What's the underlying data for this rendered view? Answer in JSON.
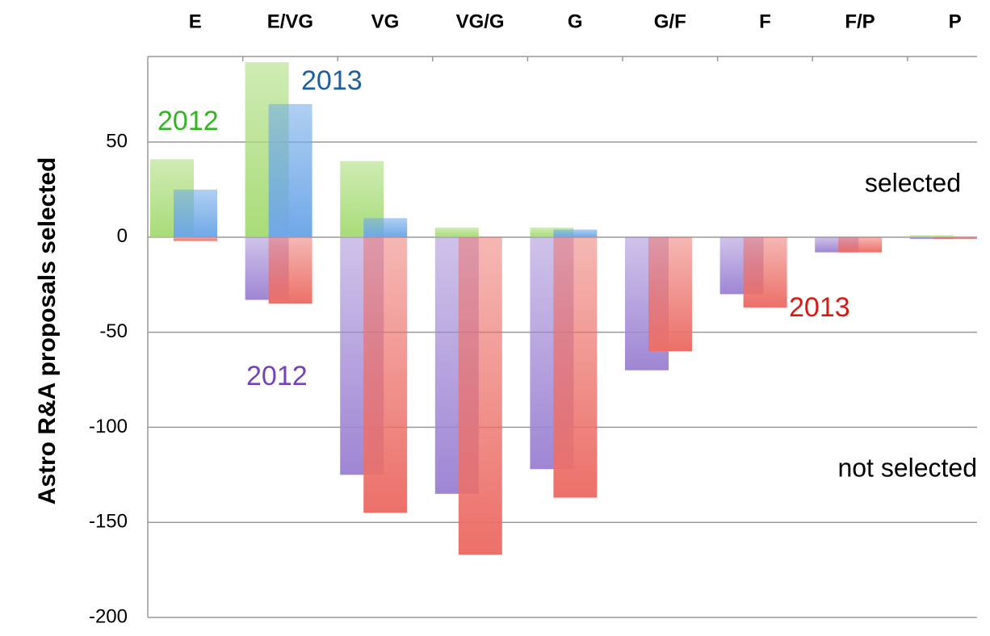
{
  "chart_data": {
    "type": "bar",
    "y_label": "Astro R&A proposals selected",
    "categories": [
      "E",
      "E/VG",
      "VG",
      "VG/G",
      "G",
      "G/F",
      "F",
      "F/P",
      "P"
    ],
    "series": [
      {
        "name": "2012",
        "color": "#a8dc78",
        "label_color": "#33b522",
        "values": [
          41,
          92,
          40,
          5,
          5,
          0,
          0,
          0,
          1
        ]
      },
      {
        "name": "2013",
        "color": "#6fa8e8",
        "label_color": "#1f5f9f",
        "values": [
          25,
          70,
          10,
          0,
          4,
          0,
          0,
          0,
          0
        ]
      },
      {
        "name": "2012",
        "color": "#9f86d4",
        "label_color": "#7444bb",
        "values": [
          0,
          -33,
          -125,
          -135,
          -122,
          -70,
          -30,
          -8,
          -1
        ]
      },
      {
        "name": "2013",
        "color": "#ec7069",
        "label_color": "#d81a14",
        "values": [
          -2,
          -35,
          -145,
          -167,
          -137,
          -60,
          -37,
          -8,
          -1
        ]
      }
    ],
    "annotations": [
      "selected",
      "not selected"
    ],
    "ylim": [
      -200,
      95
    ],
    "yticks": [
      -200,
      -150,
      -100,
      -50,
      0,
      50
    ],
    "grid": true
  }
}
